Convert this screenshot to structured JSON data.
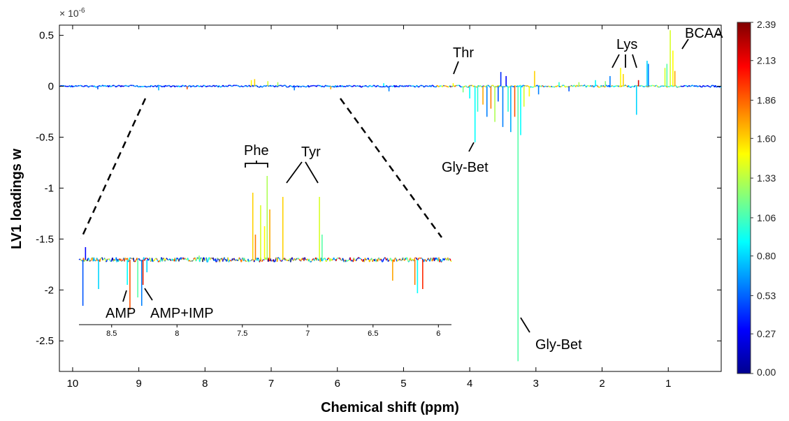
{
  "chart_data": {
    "type": "line",
    "title": "",
    "xlabel": "Chemical shift (ppm)",
    "ylabel": "LV1 loadings w",
    "exponent_label": "× 10",
    "exponent_power": "-6",
    "x_reversed": true,
    "xlim": [
      10.2,
      0.2
    ],
    "ylim": [
      -2.8,
      0.6
    ],
    "x_ticks": [
      10,
      9,
      8,
      7,
      6,
      5,
      4,
      3,
      2,
      1
    ],
    "x_tick_labels": [
      "10",
      "9",
      "8",
      "7",
      "6",
      "5",
      "4",
      "3",
      "2",
      "1"
    ],
    "y_ticks": [
      0.5,
      0,
      -0.5,
      -1,
      -1.5,
      -2,
      -2.5
    ],
    "y_tick_labels": [
      "0.5",
      "0",
      "-0.5",
      "-1",
      "-1.5",
      "-2",
      "-2.5"
    ],
    "color_metric": "correlation-colour scale",
    "colorbar": {
      "range": [
        0.0,
        2.39
      ],
      "tick_values": [
        2.39,
        2.13,
        1.86,
        1.6,
        1.33,
        1.06,
        0.8,
        0.53,
        0.27,
        0.0
      ],
      "tick_labels": [
        "2.39",
        "2.13",
        "1.86",
        "1.60",
        "1.33",
        "1.06",
        "0.80",
        "0.53",
        "0.27",
        "0.00"
      ],
      "colormap": [
        "#00008f",
        "#0000ff",
        "#0080ff",
        "#00ffff",
        "#80ff80",
        "#ffff00",
        "#ff8000",
        "#ff0000",
        "#800000"
      ]
    },
    "baseline_y": 0,
    "peaks": [
      {
        "x": 9.62,
        "y": -0.03,
        "c": 0.5
      },
      {
        "x": 8.7,
        "y": -0.04,
        "c": 0.7
      },
      {
        "x": 8.27,
        "y": -0.03,
        "c": 1.9
      },
      {
        "x": 7.3,
        "y": 0.06,
        "c": 1.5
      },
      {
        "x": 7.25,
        "y": 0.07,
        "c": 1.6
      },
      {
        "x": 7.05,
        "y": 0.05,
        "c": 1.4
      },
      {
        "x": 6.9,
        "y": 0.04,
        "c": 1.3
      },
      {
        "x": 6.65,
        "y": -0.04,
        "c": 0.6
      },
      {
        "x": 6.1,
        "y": -0.03,
        "c": 1.7
      },
      {
        "x": 5.3,
        "y": 0.03,
        "c": 0.9
      },
      {
        "x": 5.22,
        "y": -0.05,
        "c": 0.6
      },
      {
        "x": 4.25,
        "y": 0.03,
        "c": 1.5
      },
      {
        "x": 4.1,
        "y": -0.06,
        "c": 1.2
      },
      {
        "x": 4.0,
        "y": -0.12,
        "c": 0.9
      },
      {
        "x": 3.92,
        "y": -0.55,
        "c": 0.9
      },
      {
        "x": 3.88,
        "y": -0.25,
        "c": 1.0
      },
      {
        "x": 3.8,
        "y": -0.18,
        "c": 1.7
      },
      {
        "x": 3.74,
        "y": -0.3,
        "c": 0.6
      },
      {
        "x": 3.68,
        "y": -0.22,
        "c": 1.8
      },
      {
        "x": 3.62,
        "y": -0.35,
        "c": 1.3
      },
      {
        "x": 3.57,
        "y": -0.15,
        "c": 0.5
      },
      {
        "x": 3.53,
        "y": 0.14,
        "c": 0.4
      },
      {
        "x": 3.5,
        "y": -0.4,
        "c": 0.6
      },
      {
        "x": 3.45,
        "y": 0.1,
        "c": 0.3
      },
      {
        "x": 3.42,
        "y": -0.25,
        "c": 1.0
      },
      {
        "x": 3.38,
        "y": -0.45,
        "c": 0.7
      },
      {
        "x": 3.32,
        "y": -0.3,
        "c": 1.9
      },
      {
        "x": 3.27,
        "y": -2.7,
        "c": 1.1
      },
      {
        "x": 3.23,
        "y": -0.48,
        "c": 0.9
      },
      {
        "x": 3.18,
        "y": -0.2,
        "c": 1.4
      },
      {
        "x": 3.1,
        "y": -0.1,
        "c": 1.5
      },
      {
        "x": 3.02,
        "y": 0.15,
        "c": 1.6
      },
      {
        "x": 2.96,
        "y": -0.08,
        "c": 0.6
      },
      {
        "x": 2.65,
        "y": 0.04,
        "c": 1.0
      },
      {
        "x": 2.5,
        "y": -0.05,
        "c": 0.5
      },
      {
        "x": 2.35,
        "y": 0.04,
        "c": 1.3
      },
      {
        "x": 2.1,
        "y": 0.06,
        "c": 0.9
      },
      {
        "x": 1.95,
        "y": 0.05,
        "c": 1.2
      },
      {
        "x": 1.88,
        "y": 0.1,
        "c": 0.6
      },
      {
        "x": 1.72,
        "y": 0.18,
        "c": 1.5
      },
      {
        "x": 1.68,
        "y": 0.12,
        "c": 1.6
      },
      {
        "x": 1.48,
        "y": -0.28,
        "c": 0.8
      },
      {
        "x": 1.45,
        "y": 0.06,
        "c": 2.2
      },
      {
        "x": 1.32,
        "y": 0.25,
        "c": 0.8
      },
      {
        "x": 1.3,
        "y": 0.22,
        "c": 0.6
      },
      {
        "x": 1.05,
        "y": 0.18,
        "c": 1.4
      },
      {
        "x": 1.02,
        "y": 0.22,
        "c": 1.1
      },
      {
        "x": 0.97,
        "y": 0.55,
        "c": 1.4
      },
      {
        "x": 0.93,
        "y": 0.35,
        "c": 1.5
      },
      {
        "x": 0.9,
        "y": 0.15,
        "c": 1.7
      }
    ],
    "inset": {
      "xlim": [
        8.75,
        5.9
      ],
      "x_ticks": [
        8.5,
        8,
        7.5,
        7,
        6.5,
        6
      ],
      "x_tick_labels": [
        "8.5",
        "8",
        "7.5",
        "7",
        "6.5",
        "6"
      ],
      "zoom_region": [
        9.7,
        4.35
      ],
      "peaks": [
        {
          "x": 8.72,
          "y": -0.55,
          "c": 0.5
        },
        {
          "x": 8.7,
          "y": 0.15,
          "c": 0.3
        },
        {
          "x": 8.6,
          "y": -0.35,
          "c": 0.8
        },
        {
          "x": 8.38,
          "y": -0.3,
          "c": 0.9
        },
        {
          "x": 8.36,
          "y": -0.6,
          "c": 1.9
        },
        {
          "x": 8.3,
          "y": -0.45,
          "c": 1.1
        },
        {
          "x": 8.27,
          "y": -0.55,
          "c": 0.6
        },
        {
          "x": 8.26,
          "y": -0.3,
          "c": 2.0
        },
        {
          "x": 8.23,
          "y": -0.15,
          "c": 0.8
        },
        {
          "x": 7.83,
          "y": 0.05,
          "c": 1.2
        },
        {
          "x": 7.42,
          "y": 0.8,
          "c": 1.6
        },
        {
          "x": 7.4,
          "y": 0.3,
          "c": 1.8
        },
        {
          "x": 7.36,
          "y": 0.65,
          "c": 1.4
        },
        {
          "x": 7.33,
          "y": 0.4,
          "c": 1.5
        },
        {
          "x": 7.31,
          "y": 1.0,
          "c": 1.3
        },
        {
          "x": 7.29,
          "y": 0.6,
          "c": 1.7
        },
        {
          "x": 7.19,
          "y": 0.75,
          "c": 1.6
        },
        {
          "x": 6.91,
          "y": 0.75,
          "c": 1.4
        },
        {
          "x": 6.89,
          "y": 0.3,
          "c": 1.1
        },
        {
          "x": 6.35,
          "y": -0.25,
          "c": 1.7
        },
        {
          "x": 6.18,
          "y": -0.3,
          "c": 1.8
        },
        {
          "x": 6.16,
          "y": -0.4,
          "c": 0.9
        },
        {
          "x": 6.12,
          "y": -0.35,
          "c": 2.0
        }
      ]
    },
    "annotations": [
      {
        "text": "Thr",
        "x": 4.1,
        "y": 0.35
      },
      {
        "text": "Lys",
        "x": 1.6,
        "y": 0.45
      },
      {
        "text": "BCAA",
        "x": 0.6,
        "y": 0.5
      },
      {
        "text": "Gly-Bet",
        "x": 3.7,
        "y": -0.95
      },
      {
        "text": "Gly-Bet",
        "x": 2.3,
        "y": -2.55
      },
      {
        "text": "Phe",
        "x": 7.25,
        "y": -0.7
      },
      {
        "text": "Tyr",
        "x": 6.5,
        "y": -0.7
      },
      {
        "text": "AMP",
        "x": 9.05,
        "y": -2.3
      },
      {
        "text": "AMP+IMP",
        "x": 8.1,
        "y": -2.3
      }
    ],
    "grid": false,
    "legend": "colorbar-right"
  }
}
